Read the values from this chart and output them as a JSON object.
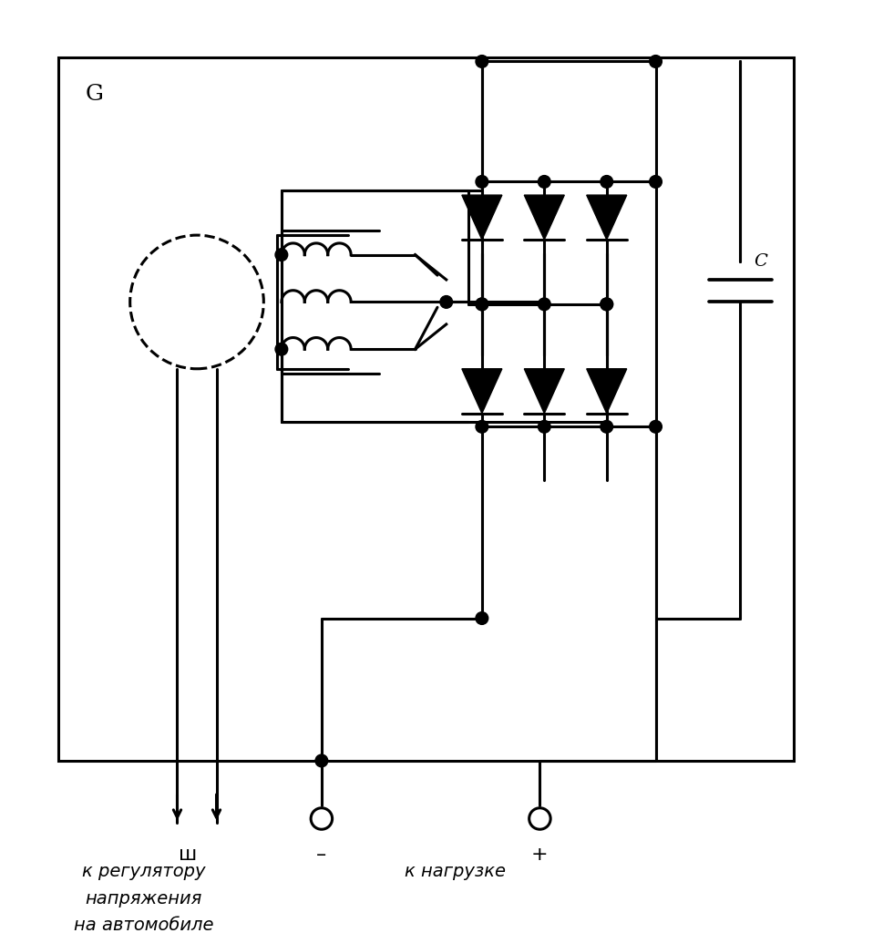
{
  "bg_color": "#ffffff",
  "line_color": "#000000",
  "line_width": 2.2,
  "fig_width": 9.58,
  "fig_height": 10.24,
  "title_label": "G",
  "cap_label": "C",
  "label_sh": "ш",
  "label_minus": "–",
  "label_plus": "+",
  "text1_line1": "к регулятору",
  "text1_line2": "напряжения",
  "text1_line3": "на автомобиле",
  "text2": "к нагрузке"
}
